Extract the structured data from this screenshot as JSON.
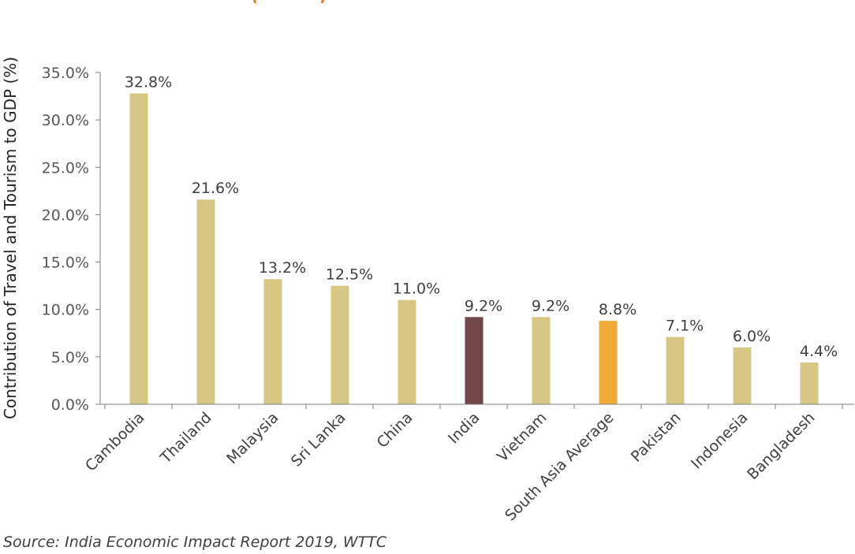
{
  "chart_data": {
    "type": "bar",
    "categories": [
      "Cambodia",
      "Thailand",
      "Malaysia",
      "Sri Lanka",
      "China",
      "India",
      "Vietnam",
      "South Asia Average",
      "Pakistan",
      "Indonesia",
      "Bangladesh"
    ],
    "values": [
      32.8,
      21.6,
      13.2,
      12.5,
      11.0,
      9.2,
      9.2,
      8.8,
      7.1,
      6.0,
      4.4
    ],
    "data_labels": [
      "32.8%",
      "21.6%",
      "13.2%",
      "12.5%",
      "11.0%",
      "9.2%",
      "9.2%",
      "8.8%",
      "7.1%",
      "6.0%",
      "4.4%"
    ],
    "bar_colors": [
      "#d6c785",
      "#d6c785",
      "#d6c785",
      "#d6c785",
      "#d6c785",
      "#71474a",
      "#d6c785",
      "#f0aa37",
      "#d6c785",
      "#d6c785",
      "#d6c785"
    ],
    "ylabel": "Contribution of Travel and Tourism to GDP (%)",
    "xlabel": "",
    "ylim": [
      0,
      35
    ],
    "yticks": [
      "0.0%",
      "5.0%",
      "10.0%",
      "15.0%",
      "20.0%",
      "25.0%",
      "30.0%",
      "35.0%"
    ],
    "grid": false,
    "legend": "none"
  },
  "source_text": "Source: India Economic Impact Report 2019, WTTC",
  "colors": {
    "accent_title": "#e07b2a",
    "bar_default": "#d6c785",
    "bar_india": "#71474a",
    "bar_average": "#f0aa37",
    "axis": "#7f7f7f"
  }
}
